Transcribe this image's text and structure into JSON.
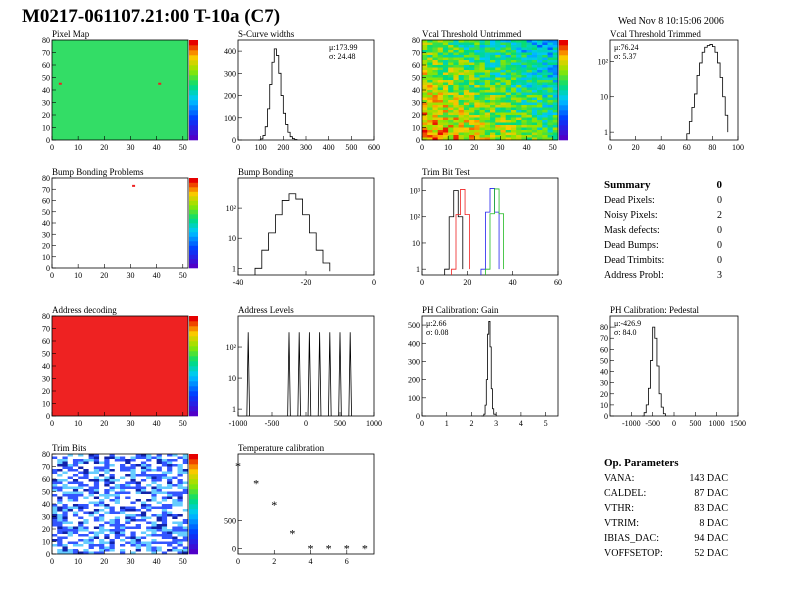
{
  "header": {
    "title": "M0217-061107.21:00 T-10a (C7)",
    "date": "Wed Nov  8 10:15:06 2006"
  },
  "summary": {
    "heading": "Summary",
    "total": "0",
    "rows": [
      {
        "label": "Dead Pixels:",
        "value": "0"
      },
      {
        "label": "Noisy Pixels:",
        "value": "2"
      },
      {
        "label": "Mask defects:",
        "value": "0"
      },
      {
        "label": "Dead Bumps:",
        "value": "0"
      },
      {
        "label": "Dead Trimbits:",
        "value": "0"
      },
      {
        "label": "Address Probl:",
        "value": "3"
      }
    ]
  },
  "op_params": {
    "heading": "Op. Parameters",
    "rows": [
      {
        "label": "VANA:",
        "value": "143 DAC"
      },
      {
        "label": "CALDEL:",
        "value": "87 DAC"
      },
      {
        "label": "VTHR:",
        "value": "83 DAC"
      },
      {
        "label": "VTRIM:",
        "value": "8 DAC"
      },
      {
        "label": "IBIAS_DAC:",
        "value": "94 DAC"
      },
      {
        "label": "VOFFSETOP:",
        "value": "52 DAC"
      }
    ]
  },
  "colors": {
    "frame": "#000000",
    "green_map": "#33dd66",
    "red_map": "#ee2222"
  },
  "chart_data": [
    {
      "id": "pixel_map",
      "type": "heatmap",
      "title": "Pixel Map",
      "xlim": [
        0,
        52
      ],
      "ylim": [
        0,
        80
      ],
      "xticks": [
        0,
        10,
        20,
        30,
        40,
        50
      ],
      "yticks": [
        0,
        10,
        20,
        30,
        40,
        50,
        60,
        70,
        80
      ],
      "fill": "uniform-green",
      "hot_pixels": [
        [
          3,
          45
        ],
        [
          41,
          45
        ]
      ]
    },
    {
      "id": "scurve",
      "type": "line",
      "title": "S-Curve widths",
      "xlim": [
        0,
        600
      ],
      "ylim": [
        0,
        450
      ],
      "xticks": [
        0,
        100,
        200,
        300,
        400,
        500,
        600
      ],
      "yticks": [
        0,
        100,
        200,
        300,
        400
      ],
      "stats": [
        "μ:173.99",
        "σ: 24.48"
      ],
      "x": [
        90,
        100,
        110,
        120,
        130,
        140,
        150,
        160,
        170,
        180,
        190,
        200,
        210,
        220,
        230,
        240,
        250,
        260
      ],
      "y": [
        0,
        5,
        20,
        60,
        140,
        250,
        350,
        410,
        380,
        300,
        200,
        120,
        70,
        35,
        15,
        6,
        2,
        0
      ]
    },
    {
      "id": "vcal_untrimmed",
      "type": "heatmap",
      "title": "Vcal Threshold Untrimmed",
      "xlim": [
        0,
        52
      ],
      "ylim": [
        0,
        80
      ],
      "xticks": [
        0,
        10,
        20,
        30,
        40,
        50
      ],
      "yticks": [
        0,
        10,
        20,
        30,
        40,
        50,
        60,
        70,
        80
      ],
      "fill": "rainbow-gradient"
    },
    {
      "id": "vcal_trimmed",
      "type": "line",
      "title": "Vcal Threshold Trimmed",
      "log_y": true,
      "xlim": [
        0,
        100
      ],
      "ylim": [
        0.6,
        400
      ],
      "xticks": [
        0,
        20,
        40,
        60,
        80,
        100
      ],
      "yticks": [
        1,
        10,
        100
      ],
      "ytick_labels": [
        "1",
        "10",
        "10²"
      ],
      "stats": [
        "μ:76.24",
        "σ: 5.37"
      ],
      "x": [
        60,
        62,
        64,
        66,
        68,
        70,
        72,
        74,
        76,
        78,
        80,
        82,
        84,
        86,
        88,
        90,
        92
      ],
      "y": [
        0.9,
        2,
        5,
        12,
        40,
        90,
        180,
        250,
        280,
        300,
        260,
        180,
        90,
        35,
        10,
        3,
        1
      ]
    },
    {
      "id": "bump_problems",
      "type": "heatmap",
      "title": "Bump Bonding Problems",
      "xlim": [
        0,
        52
      ],
      "ylim": [
        0,
        80
      ],
      "xticks": [
        0,
        10,
        20,
        30,
        40,
        50
      ],
      "yticks": [
        0,
        10,
        20,
        30,
        40,
        50,
        60,
        70,
        80
      ],
      "fill": "empty",
      "hot_pixels": [
        [
          31,
          73
        ]
      ]
    },
    {
      "id": "bump_bonding",
      "type": "line",
      "title": "Bump Bonding",
      "log_y": true,
      "xlim": [
        -40,
        0
      ],
      "ylim": [
        0.6,
        1000
      ],
      "xticks": [
        -40,
        -20,
        0
      ],
      "yticks": [
        1,
        10,
        100
      ],
      "ytick_labels": [
        "1",
        "10",
        "10²"
      ],
      "x": [
        -35,
        -33,
        -31,
        -29,
        -27,
        -25,
        -23,
        -21,
        -19,
        -17,
        -15,
        -13
      ],
      "y": [
        1,
        4,
        15,
        60,
        180,
        300,
        200,
        60,
        15,
        4,
        1.5,
        0.8
      ]
    },
    {
      "id": "trim_bit",
      "type": "line",
      "title": "Trim Bit Test",
      "log_y": true,
      "xlim": [
        0,
        60
      ],
      "ylim": [
        0.6,
        3000
      ],
      "xticks": [
        0,
        20,
        40,
        60
      ],
      "yticks": [
        1,
        10,
        100,
        1000
      ],
      "ytick_labels": [
        "1",
        "10",
        "10²",
        "10³"
      ],
      "series": [
        {
          "color": "#000000",
          "x": [
            10,
            12,
            14,
            16,
            18
          ],
          "y": [
            1,
            100,
            1000,
            100,
            1
          ]
        },
        {
          "color": "#ee2222",
          "x": [
            13,
            15,
            17,
            19,
            21
          ],
          "y": [
            1,
            120,
            1100,
            120,
            1
          ]
        },
        {
          "color": "#2222ee",
          "x": [
            26,
            28,
            30,
            32,
            34
          ],
          "y": [
            1,
            150,
            1200,
            150,
            1
          ]
        },
        {
          "color": "#22bb22",
          "x": [
            28,
            30,
            32,
            34,
            36
          ],
          "y": [
            1,
            130,
            1150,
            130,
            1
          ]
        }
      ]
    },
    {
      "id": "address_decoding",
      "type": "heatmap",
      "title": "Address decoding",
      "xlim": [
        0,
        52
      ],
      "ylim": [
        0,
        80
      ],
      "xticks": [
        0,
        10,
        20,
        30,
        40,
        50
      ],
      "yticks": [
        0,
        10,
        20,
        30,
        40,
        50,
        60,
        70,
        80
      ],
      "fill": "uniform-red"
    },
    {
      "id": "address_levels",
      "type": "line",
      "title": "Address Levels",
      "log_y": true,
      "xlim": [
        -1000,
        1000
      ],
      "ylim": [
        0.6,
        1000
      ],
      "xticks": [
        -1000,
        -500,
        0,
        500,
        1000
      ],
      "yticks": [
        1,
        10,
        100
      ],
      "ytick_labels": [
        "1",
        "10",
        "10²"
      ],
      "peaks": [
        -850,
        -250,
        -100,
        50,
        200,
        350,
        500,
        650
      ],
      "peak_height": 300
    },
    {
      "id": "ph_gain",
      "type": "line",
      "title": "PH Calibration: Gain",
      "xlim": [
        0,
        5.5
      ],
      "ylim": [
        0,
        550
      ],
      "xticks": [
        0,
        1,
        2,
        3,
        4,
        5
      ],
      "yticks": [
        0,
        100,
        200,
        300,
        400,
        500
      ],
      "stats": [
        "μ:2.66",
        "σ: 0.08"
      ],
      "x": [
        2.4,
        2.5,
        2.55,
        2.6,
        2.65,
        2.7,
        2.75,
        2.8,
        2.85,
        2.9,
        3.0
      ],
      "y": [
        0,
        10,
        60,
        200,
        450,
        520,
        380,
        150,
        40,
        10,
        0
      ]
    },
    {
      "id": "ph_pedestal",
      "type": "line",
      "title": "PH Calibration: Pedestal",
      "xlim": [
        -1500,
        1500
      ],
      "ylim": [
        0,
        90
      ],
      "xticks": [
        -1000,
        -500,
        0,
        500,
        1000,
        1500
      ],
      "yticks": [
        0,
        10,
        20,
        30,
        40,
        50,
        60,
        70,
        80
      ],
      "stats": [
        "μ:-426.9",
        "σ: 84.0"
      ],
      "x": [
        -750,
        -700,
        -650,
        -600,
        -550,
        -500,
        -450,
        -400,
        -350,
        -300,
        -250,
        -200
      ],
      "y": [
        0,
        3,
        10,
        25,
        50,
        80,
        70,
        45,
        20,
        8,
        2,
        0
      ]
    },
    {
      "id": "trim_bits",
      "type": "heatmap",
      "title": "Trim Bits",
      "xlim": [
        0,
        52
      ],
      "ylim": [
        0,
        80
      ],
      "xticks": [
        0,
        10,
        20,
        30,
        40,
        50
      ],
      "yticks": [
        0,
        10,
        20,
        30,
        40,
        50,
        60,
        70,
        80
      ],
      "fill": "blue-noise"
    },
    {
      "id": "temp_cal",
      "type": "scatter",
      "title": "Temperature calibration",
      "xlim": [
        0,
        7.5
      ],
      "ylim": [
        -100,
        1700
      ],
      "xticks": [
        0,
        2,
        4,
        6
      ],
      "yticks": [
        0,
        500
      ],
      "x": [
        0,
        1,
        2,
        3,
        4,
        5,
        6,
        7
      ],
      "y": [
        1480,
        1170,
        780,
        270,
        0,
        0,
        0,
        0
      ]
    }
  ]
}
